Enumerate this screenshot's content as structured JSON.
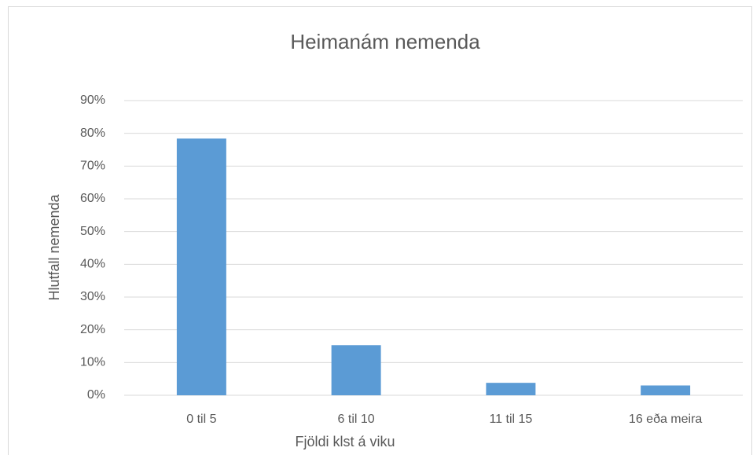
{
  "chart_data": {
    "type": "bar",
    "title": "Heimanám nemenda",
    "x_label": "Fjöldi klst á viku",
    "y_label": "Hlutfall nemenda",
    "categories": [
      "0 til 5",
      "6 til 10",
      "11 til 15",
      "16 eða meira"
    ],
    "values": [
      78.4,
      15.3,
      3.8,
      3.0
    ],
    "color": "#5b9bd5",
    "ylim": [
      0,
      90
    ],
    "yticks": [
      {
        "value": 0,
        "label": "0%"
      },
      {
        "value": 10,
        "label": "10%"
      },
      {
        "value": 20,
        "label": "20%"
      },
      {
        "value": 30,
        "label": "30%"
      },
      {
        "value": 40,
        "label": "40%"
      },
      {
        "value": 50,
        "label": "50%"
      },
      {
        "value": 60,
        "label": "60%"
      },
      {
        "value": 70,
        "label": "70%"
      },
      {
        "value": 80,
        "label": "80%"
      },
      {
        "value": 90,
        "label": "90%"
      }
    ],
    "grid": true
  }
}
